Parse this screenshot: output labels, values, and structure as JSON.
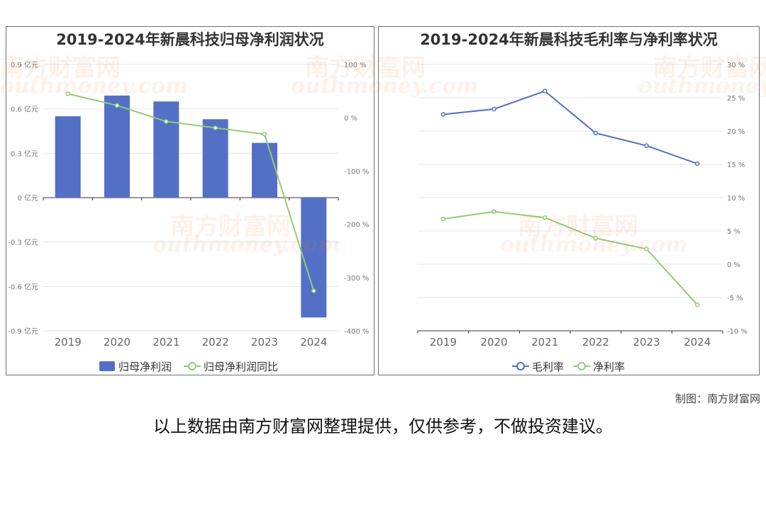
{
  "watermark": {
    "cn": "南方财富网",
    "en": "outhmoney.com"
  },
  "credit": "制图：南方财富网",
  "disclaimer": "以上数据由南方财富网整理提供，仅供参考，不做投资建议。",
  "colors": {
    "bar": "#5470c6",
    "green": "#91cc75",
    "blue": "#5470c6"
  },
  "chart_data": [
    {
      "type": "bar",
      "title": "2019-2024年新晨科技归母净利润状况",
      "categories": [
        "2019",
        "2020",
        "2021",
        "2022",
        "2023",
        "2024"
      ],
      "y_left": {
        "ticks": [
          "0.9 亿元",
          "0.6 亿元",
          "0.3 亿元",
          "0 亿元",
          "-0.3 亿元",
          "-0.6 亿元",
          "-0.9 亿元"
        ],
        "range": [
          -0.9,
          0.9
        ]
      },
      "y_right": {
        "ticks": [
          "100 %",
          "0 %",
          "-100 %",
          "-200 %",
          "-300 %",
          "-400 %"
        ],
        "range": [
          -400,
          100
        ]
      },
      "series": [
        {
          "name": "归母净利润",
          "type": "bar",
          "axis": "left",
          "values": [
            0.55,
            0.69,
            0.65,
            0.53,
            0.37,
            -0.81
          ]
        },
        {
          "name": "归母净利润同比",
          "type": "line",
          "axis": "right",
          "values": [
            45,
            23,
            -7,
            -19,
            -31,
            -325
          ]
        }
      ],
      "legend_position": "bottom"
    },
    {
      "type": "line",
      "title": "2019-2024年新晨科技毛利率与净利率状况",
      "categories": [
        "2019",
        "2020",
        "2021",
        "2022",
        "2023",
        "2024"
      ],
      "y_right": {
        "ticks": [
          "30 %",
          "25 %",
          "20 %",
          "15 %",
          "10 %",
          "5 %",
          "0 %",
          "-5 %",
          "-10 %"
        ],
        "range": [
          -10,
          30
        ]
      },
      "series": [
        {
          "name": "毛利率",
          "color": "#5470c6",
          "values": [
            22.5,
            23.3,
            26.0,
            19.7,
            17.8,
            15.1
          ]
        },
        {
          "name": "净利率",
          "color": "#91cc75",
          "values": [
            6.8,
            7.9,
            7.0,
            3.9,
            2.3,
            -6.1
          ]
        }
      ],
      "legend_position": "bottom"
    }
  ]
}
